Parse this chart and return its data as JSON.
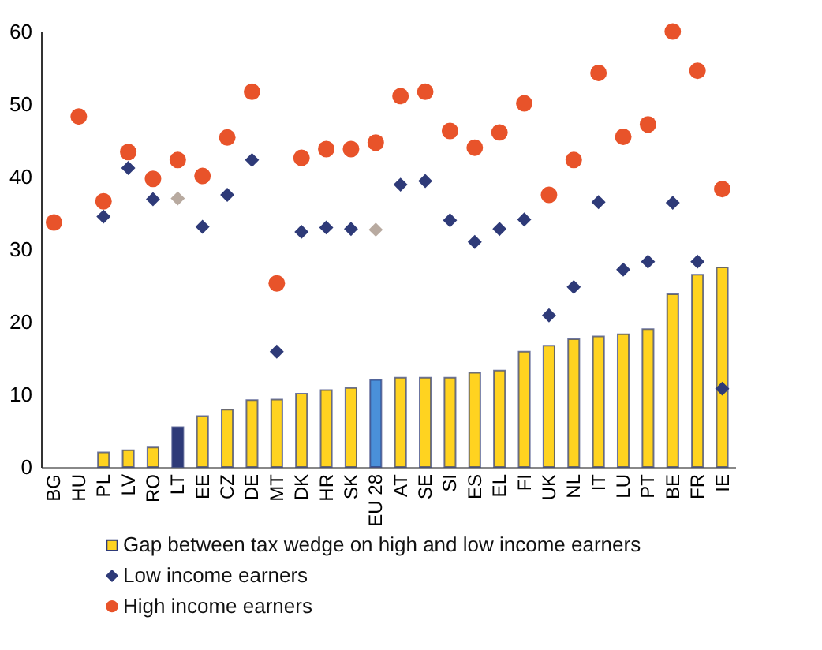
{
  "chart_data": {
    "type": "bar",
    "categories": [
      "BG",
      "HU",
      "PL",
      "LV",
      "RO",
      "LT",
      "EE",
      "CZ",
      "DE",
      "MT",
      "DK",
      "HR",
      "SK",
      "EU 28",
      "AT",
      "SE",
      "SI",
      "ES",
      "EL",
      "FI",
      "UK",
      "NL",
      "IT",
      "LU",
      "PT",
      "BE",
      "FR",
      "IE"
    ],
    "ylim": [
      0,
      60
    ],
    "yticks": [
      0,
      10,
      20,
      30,
      40,
      50,
      60
    ],
    "grid": false,
    "legend": "bottom",
    "series": [
      {
        "name": "Gap between tax wedge on high and low income earners",
        "color": "#ffd320",
        "colors": [
          "#ffd320",
          "#ffd320",
          "#ffd320",
          "#ffd320",
          "#ffd320",
          "#2e3a78",
          "#ffd320",
          "#ffd320",
          "#ffd320",
          "#ffd320",
          "#ffd320",
          "#ffd320",
          "#ffd320",
          "#4a90d9",
          "#ffd320",
          "#ffd320",
          "#ffd320",
          "#ffd320",
          "#ffd320",
          "#ffd320",
          "#ffd320",
          "#ffd320",
          "#ffd320",
          "#ffd320",
          "#ffd320",
          "#ffd320",
          "#ffd320",
          "#ffd320"
        ],
        "values": [
          null,
          null,
          2.0,
          2.3,
          2.7,
          5.5,
          7.0,
          7.9,
          9.2,
          9.3,
          10.1,
          10.6,
          10.9,
          12.0,
          12.3,
          12.3,
          12.3,
          13.0,
          13.3,
          15.9,
          16.7,
          17.6,
          18.0,
          18.3,
          19.0,
          23.8,
          26.5,
          27.5
        ]
      },
      {
        "name": "Low income earners",
        "type": "scatter",
        "marker": "diamond",
        "color": "#2e3a78",
        "colors": [
          "#2e3a78",
          "#2e3a78",
          "#2e3a78",
          "#2e3a78",
          "#2e3a78",
          "#b8aaa0",
          "#2e3a78",
          "#2e3a78",
          "#2e3a78",
          "#2e3a78",
          "#2e3a78",
          "#2e3a78",
          "#2e3a78",
          "#b8aaa0",
          "#2e3a78",
          "#2e3a78",
          "#2e3a78",
          "#2e3a78",
          "#2e3a78",
          "#2e3a78",
          "#2e3a78",
          "#2e3a78",
          "#2e3a78",
          "#2e3a78",
          "#2e3a78",
          "#2e3a78",
          "#2e3a78",
          "#2e3a78"
        ],
        "values": [
          null,
          null,
          34.5,
          41.2,
          36.9,
          37.0,
          33.1,
          37.5,
          42.3,
          15.9,
          32.4,
          33.0,
          32.8,
          32.7,
          38.9,
          39.4,
          34.0,
          31.0,
          32.8,
          34.1,
          20.9,
          24.8,
          36.5,
          27.2,
          28.3,
          36.4,
          28.3,
          10.8
        ]
      },
      {
        "name": "High income earners",
        "type": "scatter",
        "marker": "circle",
        "color": "#e8532a",
        "values": [
          33.7,
          48.3,
          36.6,
          43.4,
          39.7,
          42.3,
          40.1,
          45.4,
          51.7,
          25.3,
          42.6,
          43.8,
          43.8,
          44.7,
          51.1,
          51.7,
          46.3,
          44.0,
          46.1,
          50.1,
          37.5,
          42.3,
          54.3,
          45.5,
          47.2,
          60.0,
          54.6,
          38.3
        ]
      }
    ]
  }
}
